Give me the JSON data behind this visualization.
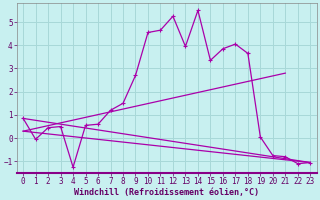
{
  "xlabel": "Windchill (Refroidissement éolien,°C)",
  "background_color": "#c8f0f0",
  "grid_color": "#a8d8d8",
  "line_color": "#aa00aa",
  "xlim": [
    -0.5,
    23.5
  ],
  "ylim": [
    -1.5,
    5.8
  ],
  "xticks": [
    0,
    1,
    2,
    3,
    4,
    5,
    6,
    7,
    8,
    9,
    10,
    11,
    12,
    13,
    14,
    15,
    16,
    17,
    18,
    19,
    20,
    21,
    22,
    23
  ],
  "yticks": [
    -1,
    0,
    1,
    2,
    3,
    4,
    5
  ],
  "series1_x": [
    0,
    1,
    2,
    3,
    4,
    5,
    6,
    7,
    8,
    9,
    10,
    11,
    12,
    13,
    14,
    15,
    16,
    17,
    18,
    19,
    20,
    21,
    22,
    23
  ],
  "series1_y": [
    0.85,
    -0.05,
    0.45,
    0.5,
    -1.25,
    0.55,
    0.6,
    1.2,
    1.5,
    2.7,
    4.55,
    4.65,
    5.25,
    3.95,
    5.5,
    3.35,
    3.85,
    4.05,
    3.65,
    0.05,
    -0.75,
    -0.8,
    -1.1,
    -1.05
  ],
  "series2_x": [
    0,
    23
  ],
  "series2_y": [
    0.85,
    -1.05
  ],
  "series3_x": [
    0,
    21
  ],
  "series3_y": [
    0.3,
    2.8
  ],
  "series4_x": [
    0,
    23
  ],
  "series4_y": [
    0.3,
    -1.05
  ],
  "tick_fontsize": 5.5,
  "xlabel_fontsize": 6.0
}
